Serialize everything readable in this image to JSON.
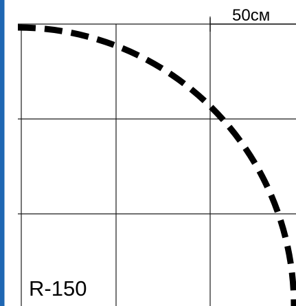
{
  "diagram": {
    "scale_label": "50см",
    "radius_label": "R-150",
    "colors": {
      "left_border": "#1f67b3",
      "grid": "#1a1a1a",
      "arc": "#000000",
      "background": "#ffffff"
    }
  }
}
